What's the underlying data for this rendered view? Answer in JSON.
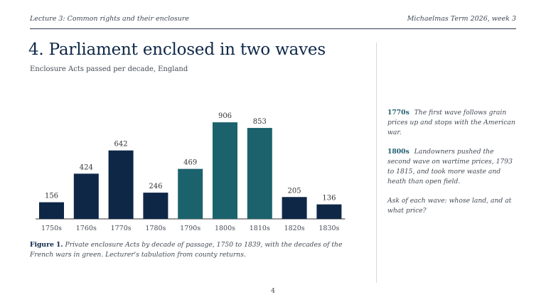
{
  "header": {
    "left": "Lecture 3: Common rights and their enclosure",
    "right": "Michaelmas Term 2026, week 3"
  },
  "slide": {
    "title": "4. Parliament enclosed in two waves",
    "subtitle": "Enclosure Acts passed per decade, England"
  },
  "chart_data": {
    "type": "bar",
    "categories": [
      "1750s",
      "1760s",
      "1770s",
      "1780s",
      "1790s",
      "1800s",
      "1810s",
      "1820s",
      "1830s"
    ],
    "values": [
      156,
      424,
      642,
      246,
      469,
      906,
      853,
      205,
      136
    ],
    "highlight": [
      false,
      false,
      false,
      false,
      true,
      true,
      true,
      false,
      false
    ],
    "colors": {
      "default": "#0e2747",
      "highlight": "#1c626c"
    },
    "ylim": [
      0,
      1000
    ],
    "grid": false,
    "legend": "none"
  },
  "caption": {
    "label": "Figure 1.",
    "text": "Private enclosure Acts by decade of passage, 1750 to 1839, with the decades of the French wars in green. Lecturer's tabulation from county returns."
  },
  "notes": [
    {
      "tag": "1770s",
      "text": "The first wave follows grain prices up and stops with the American war."
    },
    {
      "tag": "1800s",
      "text": "Landowners pushed the second wave on wartime prices, 1793 to 1815, and took more waste and heath than open field."
    }
  ],
  "closing_note": "Ask of each wave: whose land, and at what price?",
  "page_number": "4"
}
